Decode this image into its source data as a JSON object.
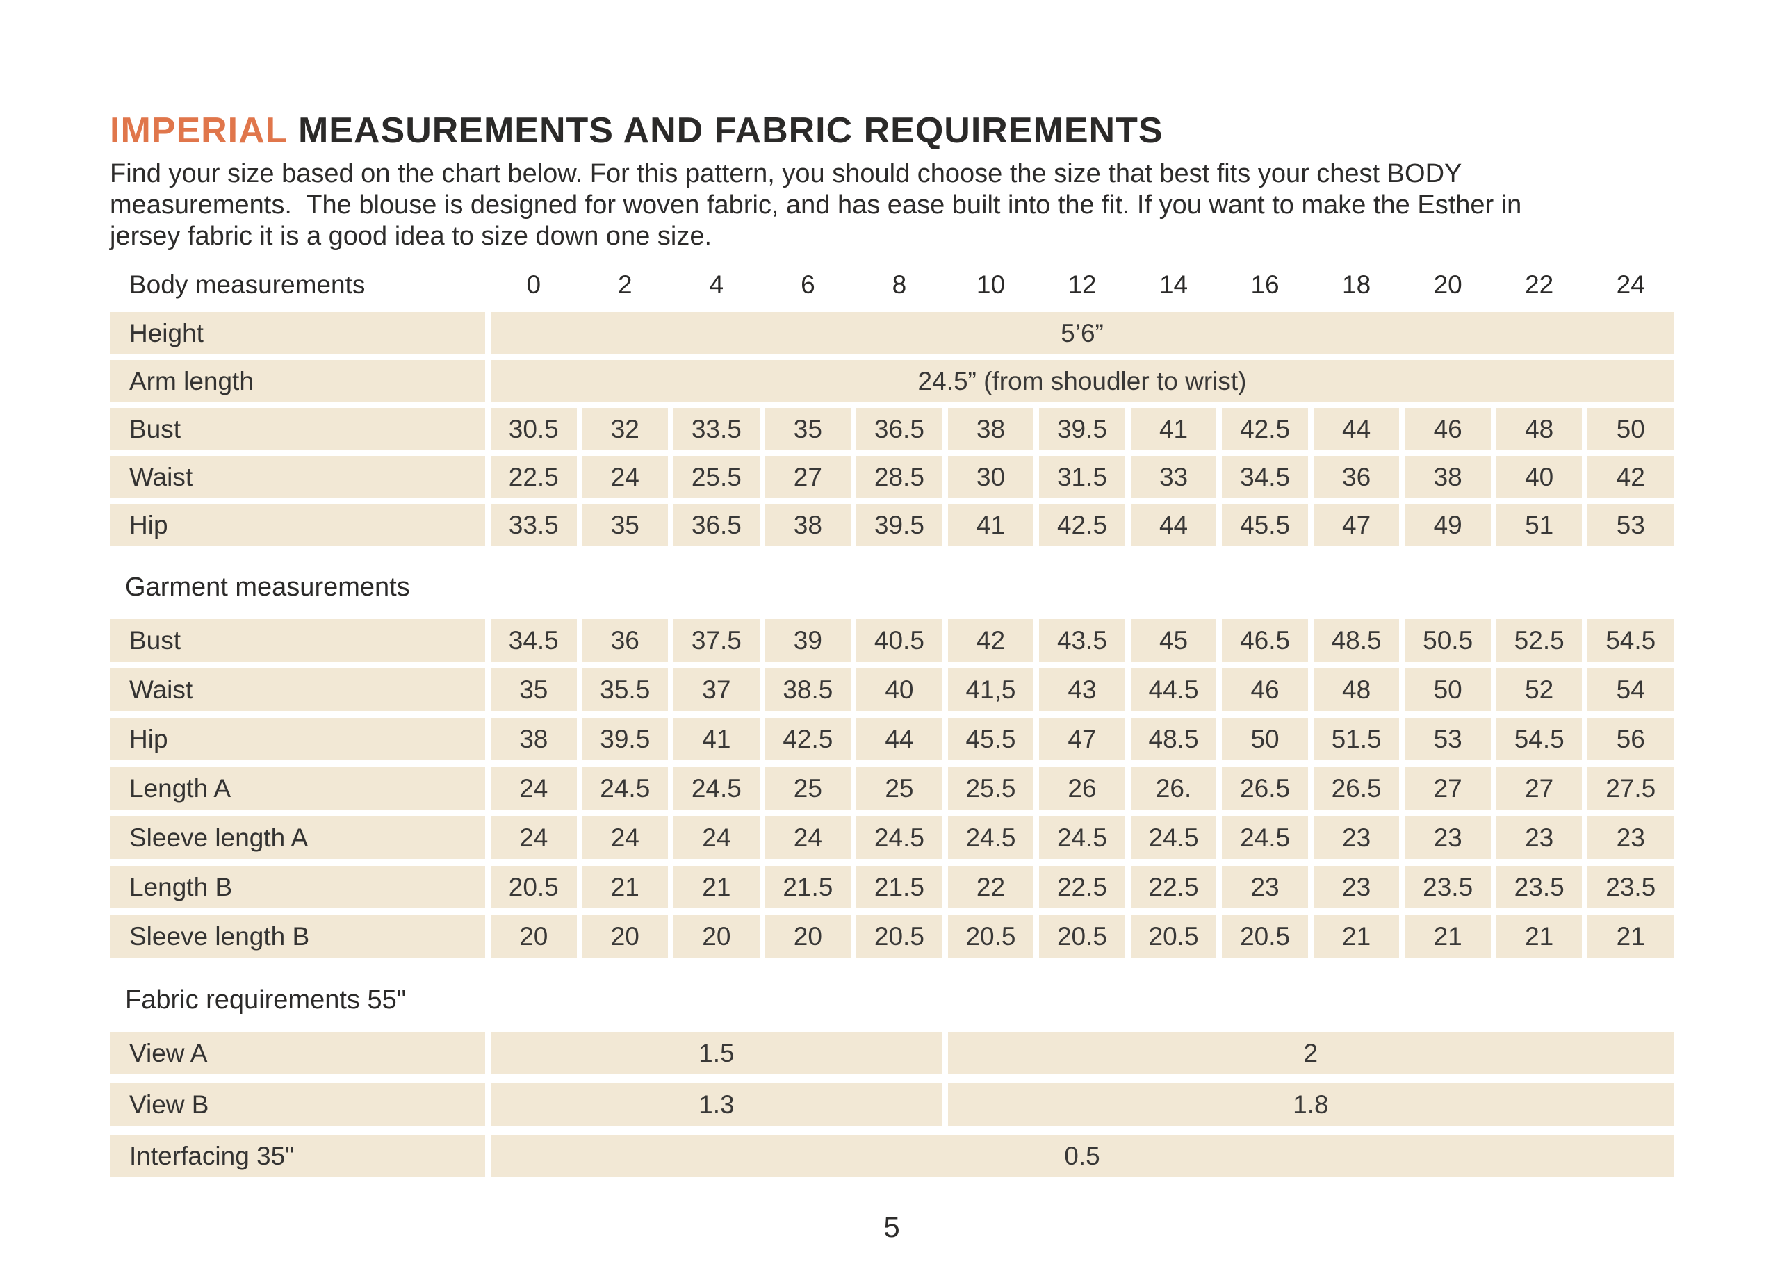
{
  "page": {
    "title_highlight": "IMPERIAL",
    "title_rest": "MEASUREMENTS AND FABRIC REQUIREMENTS",
    "intro_lines": [
      "Find your size based on the chart below. For this pattern, you should choose the size that best fits your chest BODY",
      "measurements.  The blouse is designed for woven fabric, and has ease built into the fit. If you want to make the Esther in",
      "jersey fabric it is a good idea to size down one size."
    ],
    "page_number": "5"
  },
  "colors": {
    "accent_orange": "#e0764b",
    "row_beige": "#f2e8d5",
    "text_dark": "#2d2c2b"
  },
  "table": {
    "header_label": "Body measurements",
    "sizes": [
      "0",
      "2",
      "4",
      "6",
      "8",
      "10",
      "12",
      "14",
      "16",
      "18",
      "20",
      "22",
      "24"
    ],
    "sections": [
      {
        "name": "body-measurements",
        "heading": null,
        "rows": [
          {
            "label": "Height",
            "cells": [
              {
                "text": "5’6”",
                "span": 13
              }
            ]
          },
          {
            "label": "Arm length",
            "cells": [
              {
                "text": "24.5” (from shoudler to wrist)",
                "span": 13
              }
            ]
          },
          {
            "label": "Bust",
            "values": [
              "30.5",
              "32",
              "33.5",
              "35",
              "36.5",
              "38",
              "39.5",
              "41",
              "42.5",
              "44",
              "46",
              "48",
              "50"
            ]
          },
          {
            "label": "Waist",
            "values": [
              "22.5",
              "24",
              "25.5",
              "27",
              "28.5",
              "30",
              "31.5",
              "33",
              "34.5",
              "36",
              "38",
              "40",
              "42"
            ]
          },
          {
            "label": "Hip",
            "values": [
              "33.5",
              "35",
              "36.5",
              "38",
              "39.5",
              "41",
              "42.5",
              "44",
              "45.5",
              "47",
              "49",
              "51",
              "53"
            ]
          }
        ]
      },
      {
        "name": "garment-measurements",
        "heading": "Garment measurements",
        "rows": [
          {
            "label": "Bust",
            "values": [
              "34.5",
              "36",
              "37.5",
              "39",
              "40.5",
              "42",
              "43.5",
              "45",
              "46.5",
              "48.5",
              "50.5",
              "52.5",
              "54.5"
            ]
          },
          {
            "label": "Waist",
            "values": [
              "35",
              "35.5",
              "37",
              "38.5",
              "40",
              "41,5",
              "43",
              "44.5",
              "46",
              "48",
              "50",
              "52",
              "54"
            ]
          },
          {
            "label": "Hip",
            "values": [
              "38",
              "39.5",
              "41",
              "42.5",
              "44",
              "45.5",
              "47",
              "48.5",
              "50",
              "51.5",
              "53",
              "54.5",
              "56"
            ]
          },
          {
            "label": "Length A",
            "values": [
              "24",
              "24.5",
              "24.5",
              "25",
              "25",
              "25.5",
              "26",
              "26.",
              "26.5",
              "26.5",
              "27",
              "27",
              "27.5"
            ]
          },
          {
            "label": "Sleeve length A",
            "values": [
              "24",
              "24",
              "24",
              "24",
              "24.5",
              "24.5",
              "24.5",
              "24.5",
              "24.5",
              "23",
              "23",
              "23",
              "23"
            ]
          },
          {
            "label": "Length B",
            "values": [
              "20.5",
              "21",
              "21",
              "21.5",
              "21.5",
              "22",
              "22.5",
              "22.5",
              "23",
              "23",
              "23.5",
              "23.5",
              "23.5"
            ]
          },
          {
            "label": "Sleeve length B",
            "values": [
              "20",
              "20",
              "20",
              "20",
              "20.5",
              "20.5",
              "20.5",
              "20.5",
              "20.5",
              "21",
              "21",
              "21",
              "21"
            ]
          }
        ]
      },
      {
        "name": "fabric-requirements",
        "heading": "Fabric requirements 55\"",
        "rows": [
          {
            "label": "View A",
            "cells": [
              {
                "text": "1.5",
                "span": 5
              },
              {
                "text": "2",
                "span": 8
              }
            ]
          },
          {
            "label": "View B",
            "cells": [
              {
                "text": "1.3",
                "span": 5
              },
              {
                "text": "1.8",
                "span": 8
              }
            ]
          },
          {
            "label": "Interfacing 35\"",
            "cells": [
              {
                "text": "0.5",
                "span": 13
              }
            ]
          }
        ]
      }
    ]
  }
}
